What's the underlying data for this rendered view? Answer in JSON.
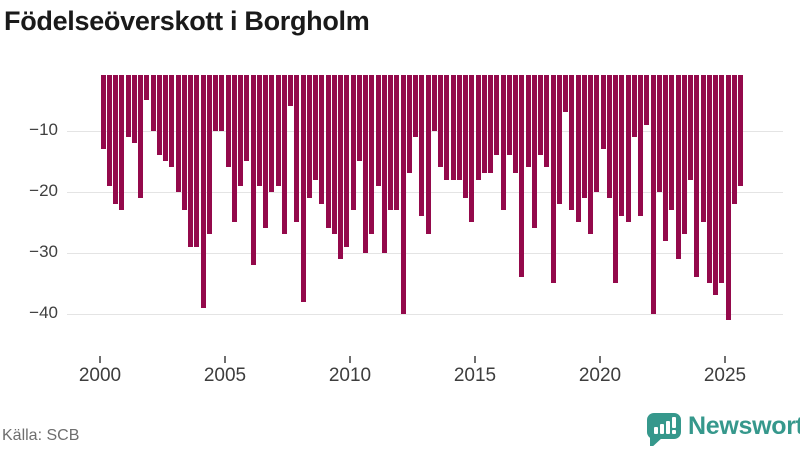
{
  "title": "Födelseöverskott i Borgholm",
  "source": "Källa: SCB",
  "logo": {
    "text": "Newsworthy",
    "icon": "newsworthy-speech-bubble-bar-chart-icon"
  },
  "colors": {
    "bar": "#94094b",
    "grid": "#e4e4e4",
    "axis_text": "#3f3f3f",
    "tick_mark": "#6f6f6f",
    "title_text": "#1a1a1a",
    "source_text": "#6e6e6e",
    "logo_teal": "#36988c",
    "background": "#ffffff"
  },
  "chart_data": {
    "type": "bar",
    "title": "Födelseöverskott i Borgholm",
    "xlabel": "",
    "ylabel": "",
    "grid": true,
    "legend": false,
    "ylim": [
      -42,
      0
    ],
    "yticks": [
      {
        "label": "−10",
        "value": -10
      },
      {
        "label": "−20",
        "value": -20
      },
      {
        "label": "−30",
        "value": -30
      },
      {
        "label": "−40",
        "value": -40
      }
    ],
    "xticks": [
      2000,
      2005,
      2010,
      2015,
      2020,
      2025
    ],
    "x": [
      "2000Q1",
      "2000Q2",
      "2000Q3",
      "2000Q4",
      "2001Q1",
      "2001Q2",
      "2001Q3",
      "2001Q4",
      "2002Q1",
      "2002Q2",
      "2002Q3",
      "2002Q4",
      "2003Q1",
      "2003Q2",
      "2003Q3",
      "2003Q4",
      "2004Q1",
      "2004Q2",
      "2004Q3",
      "2004Q4",
      "2005Q1",
      "2005Q2",
      "2005Q3",
      "2005Q4",
      "2006Q1",
      "2006Q2",
      "2006Q3",
      "2006Q4",
      "2007Q1",
      "2007Q2",
      "2007Q3",
      "2007Q4",
      "2008Q1",
      "2008Q2",
      "2008Q3",
      "2008Q4",
      "2009Q1",
      "2009Q2",
      "2009Q3",
      "2009Q4",
      "2010Q1",
      "2010Q2",
      "2010Q3",
      "2010Q4",
      "2011Q1",
      "2011Q2",
      "2011Q3",
      "2011Q4",
      "2012Q1",
      "2012Q2",
      "2012Q3",
      "2012Q4",
      "2013Q1",
      "2013Q2",
      "2013Q3",
      "2013Q4",
      "2014Q1",
      "2014Q2",
      "2014Q3",
      "2014Q4",
      "2015Q1",
      "2015Q2",
      "2015Q3",
      "2015Q4",
      "2016Q1",
      "2016Q2",
      "2016Q3",
      "2016Q4",
      "2017Q1",
      "2017Q2",
      "2017Q3",
      "2017Q4",
      "2018Q1",
      "2018Q2",
      "2018Q3",
      "2018Q4",
      "2019Q1",
      "2019Q2",
      "2019Q3",
      "2019Q4",
      "2020Q1",
      "2020Q2",
      "2020Q3",
      "2020Q4",
      "2021Q1",
      "2021Q2",
      "2021Q3",
      "2021Q4",
      "2022Q1",
      "2022Q2",
      "2022Q3",
      "2022Q4",
      "2023Q1",
      "2023Q2",
      "2023Q3",
      "2023Q4",
      "2024Q1",
      "2024Q2",
      "2024Q3",
      "2024Q4",
      "2025Q1",
      "2025Q2",
      "2025Q3"
    ],
    "values": [
      -13,
      -19,
      -22,
      -23,
      -11,
      -12,
      -21,
      -5,
      -10,
      -14,
      -15,
      -16,
      -20,
      -23,
      -29,
      -29,
      -39,
      -27,
      -10,
      -10,
      -16,
      -25,
      -19,
      -15,
      -32,
      -19,
      -26,
      -20,
      -19,
      -27,
      -6,
      -25,
      -38,
      -21,
      -18,
      -22,
      -26,
      -27,
      -31,
      -29,
      -23,
      -15,
      -30,
      -27,
      -19,
      -30,
      -23,
      -23,
      -40,
      -17,
      -11,
      -24,
      -27,
      -10,
      -16,
      -18,
      -18,
      -18,
      -21,
      -25,
      -18,
      -17,
      -17,
      -14,
      -23,
      -14,
      -17,
      -34,
      -16,
      -26,
      -14,
      -16,
      -35,
      -22,
      -7,
      -23,
      -25,
      -21,
      -27,
      -20,
      -13,
      -21,
      -35,
      -24,
      -25,
      -11,
      -24,
      -9,
      -40,
      -20,
      -28,
      -23,
      -31,
      -27,
      -18,
      -34,
      -25,
      -35,
      -37,
      -35,
      -41,
      -22,
      -19
    ]
  }
}
